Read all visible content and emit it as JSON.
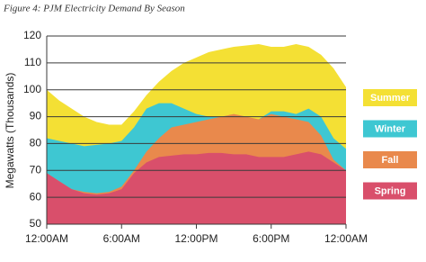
{
  "chart_data": {
    "type": "area",
    "title": "Figure 4: PJM Electricity Demand By Season",
    "y_label": "Megawatts (Thousands)",
    "x": [
      0,
      1,
      2,
      3,
      4,
      5,
      6,
      7,
      8,
      9,
      10,
      11,
      12,
      13,
      14,
      15,
      16,
      17,
      18,
      19,
      20,
      21,
      22,
      23,
      24
    ],
    "xlim": [
      0,
      24
    ],
    "xticks": [
      {
        "value": 0,
        "label": "12:00AM"
      },
      {
        "value": 6,
        "label": "6:00AM"
      },
      {
        "value": 12,
        "label": "12:00PM"
      },
      {
        "value": 18,
        "label": "6:00PM"
      },
      {
        "value": 24,
        "label": "12:00AM"
      }
    ],
    "ylim": [
      50,
      120
    ],
    "yticks": [
      50,
      60,
      70,
      80,
      90,
      100,
      110,
      120
    ],
    "grid": true,
    "legend": "right",
    "series": [
      {
        "name": "Summer",
        "color": "#f4e034",
        "values": [
          100,
          96,
          93,
          90,
          88,
          87,
          87,
          92,
          98,
          103,
          107,
          110,
          112,
          114,
          115,
          116,
          116.5,
          117,
          116,
          116,
          117,
          116,
          113,
          108,
          101
        ]
      },
      {
        "name": "Winter",
        "color": "#3ec7d2",
        "values": [
          82,
          81,
          80,
          79,
          79.5,
          80,
          81,
          86,
          93,
          95,
          95,
          93,
          91,
          90,
          90,
          89.5,
          89,
          89,
          92,
          92,
          91,
          93,
          90,
          82,
          78
        ]
      },
      {
        "name": "Fall",
        "color": "#e9894c",
        "values": [
          69,
          66,
          63,
          62,
          61.5,
          62,
          64,
          70,
          77,
          82,
          86,
          87,
          88,
          89,
          90,
          91,
          90,
          89,
          91,
          90,
          89,
          88,
          83,
          74,
          70
        ]
      },
      {
        "name": "Spring",
        "color": "#d94f6b",
        "values": [
          69,
          66,
          63,
          61.5,
          61,
          61.5,
          63,
          69,
          73,
          75,
          75.5,
          76,
          76,
          76.5,
          76.5,
          76,
          76,
          75,
          75,
          75,
          76,
          77,
          76,
          73,
          70
        ]
      }
    ]
  }
}
